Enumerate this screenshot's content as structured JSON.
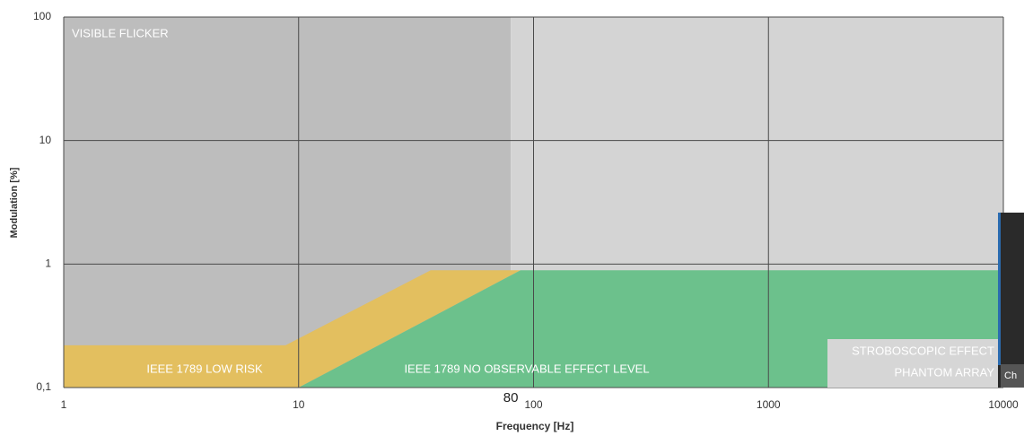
{
  "chart_data": {
    "type": "area",
    "x_label": "Frequency [Hz]",
    "y_label": "Modulation [%]",
    "xscale": "log",
    "yscale": "log",
    "xlim": [
      1,
      10000
    ],
    "ylim": [
      0.1,
      100
    ],
    "xticks": [
      1,
      10,
      100,
      1000,
      10000
    ],
    "yticks": [
      {
        "value": 0.1,
        "label": "0,1"
      },
      1,
      10,
      100
    ],
    "xmarkers": [
      80
    ],
    "grid": true,
    "regions": [
      {
        "label": "VISIBLE FLICKER",
        "color": "#bdbdbd",
        "x": [
          1,
          1,
          80,
          80
        ],
        "y": [
          0.1,
          100,
          100,
          0.1
        ]
      },
      {
        "color": "#d4d4d4",
        "x": [
          80,
          80,
          10000,
          10000
        ],
        "y": [
          0.1,
          100,
          100,
          0.1
        ]
      },
      {
        "label": "IEEE 1789 LOW RISK",
        "color": "#e3bf5f",
        "x": [
          1,
          1,
          8.8,
          36.5,
          88,
          10
        ],
        "y": [
          0.1,
          0.22,
          0.22,
          0.89,
          0.89,
          0.1
        ]
      },
      {
        "label": "IEEE 1789 NO OBSERVABLE EFFECT LEVEL",
        "color": "#6cc18c",
        "x": [
          10,
          88,
          10000,
          10000
        ],
        "y": [
          0.1,
          0.89,
          0.89,
          0.1
        ]
      }
    ],
    "annotations": [
      "STROBOSCOPIC EFFECT",
      "PHANTOM ARRAY"
    ],
    "overlay_text": "Ch"
  }
}
